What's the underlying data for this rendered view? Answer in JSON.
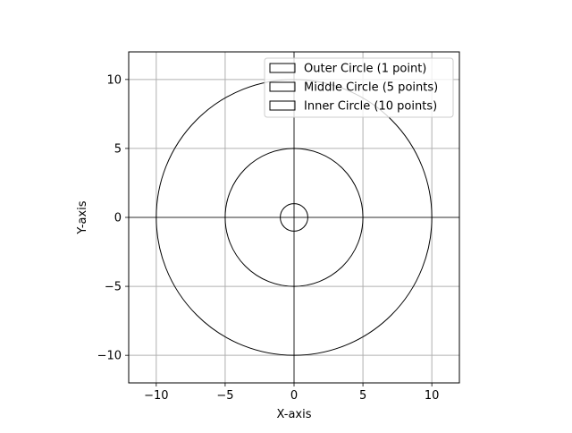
{
  "chart_data": {
    "type": "line",
    "title": "",
    "xlabel": "X-axis",
    "ylabel": "Y-axis",
    "xlim": [
      -12,
      12
    ],
    "ylim": [
      -12,
      12
    ],
    "aspect": "equal",
    "grid": true,
    "legend_position": "top-right",
    "axis_lines_at_zero": true,
    "xticks": [
      -10,
      -5,
      0,
      5,
      10
    ],
    "yticks": [
      -10,
      -5,
      0,
      5,
      10
    ],
    "xtick_labels": [
      "−10",
      "−5",
      "0",
      "5",
      "10"
    ],
    "ytick_labels": [
      "−10",
      "−5",
      "0",
      "5",
      "10"
    ],
    "series": [
      {
        "name": "Outer Circle (1 point)",
        "shape": "circle",
        "center": [
          0,
          0
        ],
        "radius": 10,
        "color": "#000000"
      },
      {
        "name": "Middle Circle (5 points)",
        "shape": "circle",
        "center": [
          0,
          0
        ],
        "radius": 5,
        "color": "#000000"
      },
      {
        "name": "Inner Circle (10 points)",
        "shape": "circle",
        "center": [
          0,
          0
        ],
        "radius": 1,
        "color": "#000000"
      }
    ]
  },
  "colors": {
    "grid": "#b0b0b0",
    "axes": "#000000",
    "legend_border": "#cccccc"
  }
}
